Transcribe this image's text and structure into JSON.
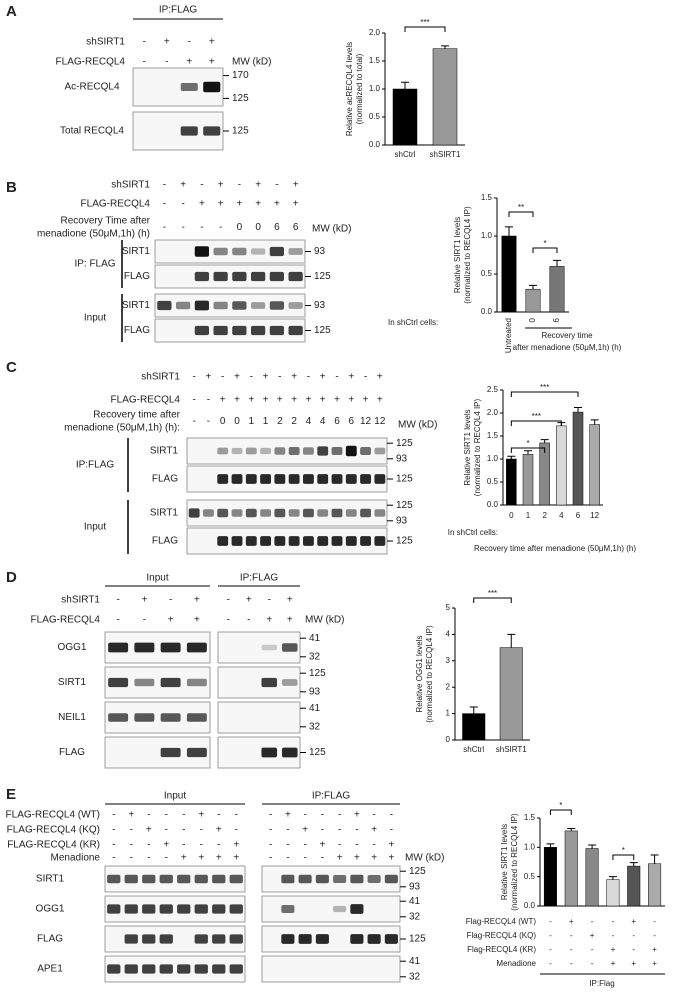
{
  "panels": [
    {
      "label": "A",
      "blot": {
        "headers": [
          "IP:FLAG"
        ],
        "conditions": [
          {
            "label": "shSIRT1",
            "signs": [
              "-",
              "+",
              "-",
              "+"
            ]
          },
          {
            "label": "FLAG-RECQL4",
            "signs": [
              "-",
              "-",
              "+",
              "+"
            ]
          }
        ],
        "mw_label": "MW (kD)",
        "groups": [
          {
            "rows": [
              {
                "label": "Ac-RECQL4",
                "markers": [
                  170,
                  125
                ]
              },
              {
                "label": "Total RECQL4",
                "markers": [
                  125
                ]
              }
            ]
          }
        ]
      },
      "chart": {
        "type": "bar",
        "ylabel": [
          "Relative acRECQL4 levels",
          "(normalized to total)"
        ],
        "ylim": [
          0,
          2
        ],
        "yticks": [
          {
            "value": 0,
            "label": "0.0"
          },
          {
            "value": 0.5,
            "label": "0.5"
          },
          {
            "value": 1,
            "label": "1.0"
          },
          {
            "value": 1.5,
            "label": "1.5"
          },
          {
            "value": 2,
            "label": "2.0"
          }
        ],
        "categories": [
          "shCtrl",
          "shSIRT1"
        ],
        "values": [
          1.0,
          1.72
        ],
        "errors": [
          0.12,
          0.05
        ],
        "colors": [
          "#000000",
          "#999999"
        ],
        "significance": [
          "***"
        ]
      }
    },
    {
      "label": "B",
      "blot": {
        "conditions": [
          {
            "label": "shSIRT1",
            "signs": [
              "-",
              "+",
              "-",
              "+",
              "-",
              "+",
              "-",
              "+"
            ]
          },
          {
            "label": "FLAG-RECQL4",
            "signs": [
              "-",
              "-",
              "+",
              "+",
              "+",
              "+",
              "+",
              "+"
            ]
          },
          {
            "label": [
              "Recovery Time after",
              "menadione (50μM,1h) (h)"
            ],
            "signs": [
              "-",
              "-",
              "-",
              "-",
              "0",
              "0",
              "6",
              "6"
            ]
          }
        ],
        "mw_label": "MW (kD)",
        "groups": [
          {
            "label": "IP: FLAG",
            "rows": [
              {
                "label": "SIRT1",
                "markers": [
                  93
                ]
              },
              {
                "label": "FLAG",
                "markers": [
                  125
                ]
              }
            ]
          },
          {
            "label": "Input",
            "rows": [
              {
                "label": "SIRT1",
                "markers": [
                  93
                ]
              },
              {
                "label": "FLAG",
                "markers": [
                  125
                ]
              }
            ]
          }
        ]
      },
      "chart": {
        "type": "bar",
        "ylabel": [
          "Relative SIRT1 levels",
          "(normalized to RECQL4 IP)"
        ],
        "ylim": [
          0,
          1.5
        ],
        "yticks": [
          {
            "value": 0,
            "label": "0.0"
          },
          {
            "value": 0.5,
            "label": "0.5"
          },
          {
            "value": 1,
            "label": "1.0"
          },
          {
            "value": 1.5,
            "label": "1.5"
          }
        ],
        "categories": [
          "Untreated",
          "0",
          "6"
        ],
        "values": [
          1.0,
          0.3,
          0.6
        ],
        "errors": [
          0.12,
          0.05,
          0.08
        ],
        "colors": [
          "#000000",
          "#999999",
          "#777777"
        ],
        "significance": [
          "**",
          "*"
        ],
        "notes": [
          "In shCtrl cells:",
          "Recovery time",
          "after menadione (50μM,1h) (h)"
        ]
      }
    },
    {
      "label": "C",
      "blot": {
        "conditions": [
          {
            "label": "shSIRT1",
            "signs": [
              "-",
              "+",
              "-",
              "+",
              "-",
              "+",
              "-",
              "+",
              "-",
              "+",
              "-",
              "+",
              "-",
              "+"
            ]
          },
          {
            "label": "FLAG-RECQL4",
            "signs": [
              "-",
              "-",
              "+",
              "+",
              "+",
              "+",
              "+",
              "+",
              "+",
              "+",
              "+",
              "+",
              "+",
              "+"
            ]
          },
          {
            "label": [
              "Recovery time after",
              "menadione (50μM,1h) (h):"
            ],
            "signs": [
              "-",
              "-",
              "0",
              "0",
              "1",
              "1",
              "2",
              "2",
              "4",
              "4",
              "6",
              "6",
              "12",
              "12"
            ]
          }
        ],
        "mw_label": "MW (kD)",
        "groups": [
          {
            "label": "IP:FLAG",
            "rows": [
              {
                "label": "SIRT1",
                "markers": [
                  125,
                  93
                ]
              },
              {
                "label": "FLAG",
                "markers": [
                  125
                ]
              }
            ]
          },
          {
            "label": "Input",
            "rows": [
              {
                "label": "SIRT1",
                "markers": [
                  125,
                  93
                ]
              },
              {
                "label": "FLAG",
                "markers": [
                  125
                ]
              }
            ]
          }
        ]
      },
      "chart": {
        "type": "bar",
        "ylabel": [
          "Relative SIRT1 levels",
          "(normalized to RECQL4 IP)"
        ],
        "ylim": [
          0,
          2.5
        ],
        "yticks": [
          {
            "value": 0,
            "label": "0.0"
          },
          {
            "value": 0.5,
            "label": "0.5"
          },
          {
            "value": 1,
            "label": "1.0"
          },
          {
            "value": 1.5,
            "label": "1.5"
          },
          {
            "value": 2,
            "label": "2.0"
          },
          {
            "value": 2.5,
            "label": "2.5"
          }
        ],
        "categories": [
          0,
          1,
          2,
          4,
          6,
          12
        ],
        "values": [
          1.0,
          1.1,
          1.35,
          1.72,
          2.02,
          1.75
        ],
        "errors": [
          0.06,
          0.08,
          0.07,
          0.07,
          0.1,
          0.1
        ],
        "colors": [
          "#000000",
          "#999999",
          "#888888",
          "#d9d9d9",
          "#555555",
          "#aaaaaa"
        ],
        "significance": [
          "*",
          "***",
          "***"
        ],
        "notes": [
          "In shCtrl cells:",
          "Recovery time after menadione (50μM,1h) (h)"
        ]
      }
    },
    {
      "label": "D",
      "blot": {
        "headers": [
          "Input",
          "IP:FLAG"
        ],
        "conditions": [
          {
            "label": "shSIRT1",
            "signs": [
              "-",
              "+",
              "-",
              "+",
              "-",
              "+",
              "-",
              "+"
            ]
          },
          {
            "label": "FLAG-RECQL4",
            "signs": [
              "-",
              "-",
              "+",
              "+",
              "-",
              "-",
              "+",
              "+"
            ]
          }
        ],
        "mw_label": "MW (kD)",
        "groups": [
          {
            "rows": [
              {
                "label": "OGG1",
                "markers": [
                  41,
                  32
                ]
              },
              {
                "label": "SIRT1",
                "markers": [
                  125,
                  93
                ]
              },
              {
                "label": "NEIL1",
                "markers": [
                  41,
                  32
                ]
              },
              {
                "label": "FLAG",
                "markers": [
                  125
                ]
              }
            ]
          }
        ]
      },
      "chart": {
        "type": "bar",
        "ylabel": [
          "Relative OGG1 levels",
          "(normalized to RECQL4 IP)"
        ],
        "ylim": [
          0,
          5
        ],
        "yticks": [
          0,
          1,
          2,
          3,
          4,
          5
        ],
        "categories": [
          "shCtrl",
          "shSIRT1"
        ],
        "values": [
          1.0,
          3.5
        ],
        "errors": [
          0.25,
          0.5
        ],
        "colors": [
          "#000000",
          "#999999"
        ],
        "significance": [
          "***"
        ]
      }
    },
    {
      "label": "E",
      "blot": {
        "headers": [
          "Input",
          "IP:FLAG"
        ],
        "conditions": [
          {
            "label": "FLAG-RECQL4 (WT)",
            "signs": [
              "-",
              "+",
              "-",
              "-",
              "-",
              "+",
              "-",
              "-",
              "-",
              "+",
              "-",
              "-",
              "-",
              "+",
              "-",
              "-"
            ]
          },
          {
            "label": "FLAG-RECQL4 (KQ)",
            "signs": [
              "-",
              "-",
              "+",
              "-",
              "-",
              "-",
              "+",
              "-",
              "-",
              "-",
              "+",
              "-",
              "-",
              "-",
              "+",
              "-"
            ]
          },
          {
            "label": "FLAG-RECQL4 (KR)",
            "signs": [
              "-",
              "-",
              "-",
              "+",
              "-",
              "-",
              "-",
              "+",
              "-",
              "-",
              "-",
              "+",
              "-",
              "-",
              "-",
              "+"
            ]
          },
          {
            "label": "Menadione",
            "signs": [
              "-",
              "-",
              "-",
              "-",
              "+",
              "+",
              "+",
              "+",
              "-",
              "-",
              "-",
              "-",
              "+",
              "+",
              "+",
              "+"
            ]
          }
        ],
        "mw_label": "MW (kD)",
        "groups": [
          {
            "rows": [
              {
                "label": "SIRT1",
                "markers": [
                  125,
                  93
                ]
              },
              {
                "label": "OGG1",
                "markers": [
                  41,
                  32
                ]
              },
              {
                "label": "FLAG",
                "markers": [
                  125
                ]
              },
              {
                "label": "APE1",
                "markers": [
                  41,
                  32
                ]
              }
            ]
          }
        ]
      },
      "chart": {
        "type": "bar",
        "ylabel": [
          "Relative SIRT1 levels",
          "(normalized to RECQL4 IP)"
        ],
        "ylim": [
          0,
          1.5
        ],
        "yticks": [
          {
            "value": 0,
            "label": "0.0"
          },
          {
            "value": 0.5,
            "label": "0.5"
          },
          {
            "value": 1,
            "label": "1.0"
          },
          {
            "value": 1.5,
            "label": "1.5"
          }
        ],
        "values": [
          1.0,
          1.28,
          0.98,
          0.45,
          0.68,
          0.72
        ],
        "errors": [
          0.06,
          0.04,
          0.06,
          0.05,
          0.06,
          0.15
        ],
        "colors": [
          "#000000",
          "#999999",
          "#888888",
          "#d9d9d9",
          "#555555",
          "#aaaaaa"
        ],
        "significance": [
          "*",
          "*"
        ],
        "conditions": [
          {
            "label": "Flag-RECQL4 (WT)",
            "signs": [
              "-",
              "+",
              "-",
              "-",
              "+",
              "-"
            ]
          },
          {
            "label": "Flag-RECQL4 (KQ)",
            "signs": [
              "-",
              "-",
              "+",
              "-",
              "-",
              "-"
            ]
          },
          {
            "label": "Flag-RECQL4 (KR)",
            "signs": [
              "-",
              "-",
              "-",
              "+",
              "-",
              "+"
            ]
          },
          {
            "label": "Menadione",
            "signs": [
              "-",
              "-",
              "-",
              "+",
              "+",
              "+"
            ]
          }
        ],
        "notes": [
          "IP:Flag"
        ]
      }
    }
  ]
}
